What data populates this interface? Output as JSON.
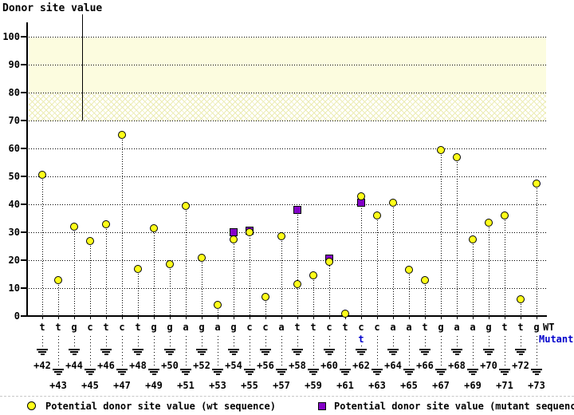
{
  "title": "Donor site value",
  "chart_data": {
    "type": "scatter",
    "title": "Donor site value",
    "ylabel": "Donor site value",
    "xlabel": "",
    "ylim": [
      0,
      107
    ],
    "y_ticks": [
      0,
      10,
      20,
      30,
      40,
      50,
      60,
      70,
      80,
      90,
      100
    ],
    "grid": "horizontal-dotted",
    "legend_position": "bottom",
    "highlight_bands": [
      {
        "from": 80,
        "to": 100,
        "style": "solid",
        "color": "#FCFCDF"
      },
      {
        "from": 70,
        "to": 80,
        "style": "crosshatch",
        "color": "#ECECB4"
      }
    ],
    "x_positions": [
      "+42",
      "+43",
      "+44",
      "+45",
      "+46",
      "+47",
      "+48",
      "+49",
      "+50",
      "+51",
      "+52",
      "+53",
      "+54",
      "+55",
      "+56",
      "+57",
      "+58",
      "+59",
      "+60",
      "+61",
      "+62",
      "+63",
      "+64",
      "+65",
      "+66",
      "+67",
      "+68",
      "+69",
      "+70",
      "+71",
      "+72",
      "+73"
    ],
    "wt_bases": [
      "t",
      "t",
      "g",
      "c",
      "t",
      "c",
      "t",
      "g",
      "g",
      "a",
      "g",
      "a",
      "g",
      "c",
      "c",
      "a",
      "t",
      "t",
      "c",
      "t",
      "c",
      "c",
      "a",
      "a",
      "t",
      "g",
      "a",
      "a",
      "g",
      "t",
      "t",
      "g"
    ],
    "wt_values": [
      50.5,
      13,
      32,
      27,
      33,
      65,
      17,
      31.5,
      18.5,
      39.5,
      21,
      4,
      27.5,
      30,
      7,
      28.5,
      11.5,
      14.5,
      19.5,
      1,
      43,
      36,
      40.5,
      16.5,
      13,
      59.5,
      57,
      27.5,
      33.5,
      36,
      6,
      47.5
    ],
    "mutant_points": [
      {
        "position": "+54",
        "value": 30
      },
      {
        "position": "+55",
        "value": 30.5
      },
      {
        "position": "+58",
        "value": 38
      },
      {
        "position": "+60",
        "value": 20.5
      },
      {
        "position": "+62",
        "value": 40.5,
        "base": "t"
      }
    ],
    "series": [
      {
        "name": "Potential donor site value (wt sequence)",
        "marker": "circle",
        "color": "#FFFF19"
      },
      {
        "name": "Potential donor site value (mutant sequence)",
        "marker": "square",
        "color": "#8400C8"
      }
    ]
  },
  "right_labels": {
    "wt": "WT",
    "mutant": "Mutant"
  },
  "legend": {
    "wt": "Potential donor site value (wt sequence)",
    "mutant": "Potential donor site value (mutant sequence)"
  },
  "colors": {
    "wt_marker": "#FFFF19",
    "mutant_marker": "#8400C8",
    "mutant_text": "#0000CC",
    "band_solid": "#FCFCDF",
    "hatch_line": "#ECECB4",
    "axis": "#000000"
  }
}
